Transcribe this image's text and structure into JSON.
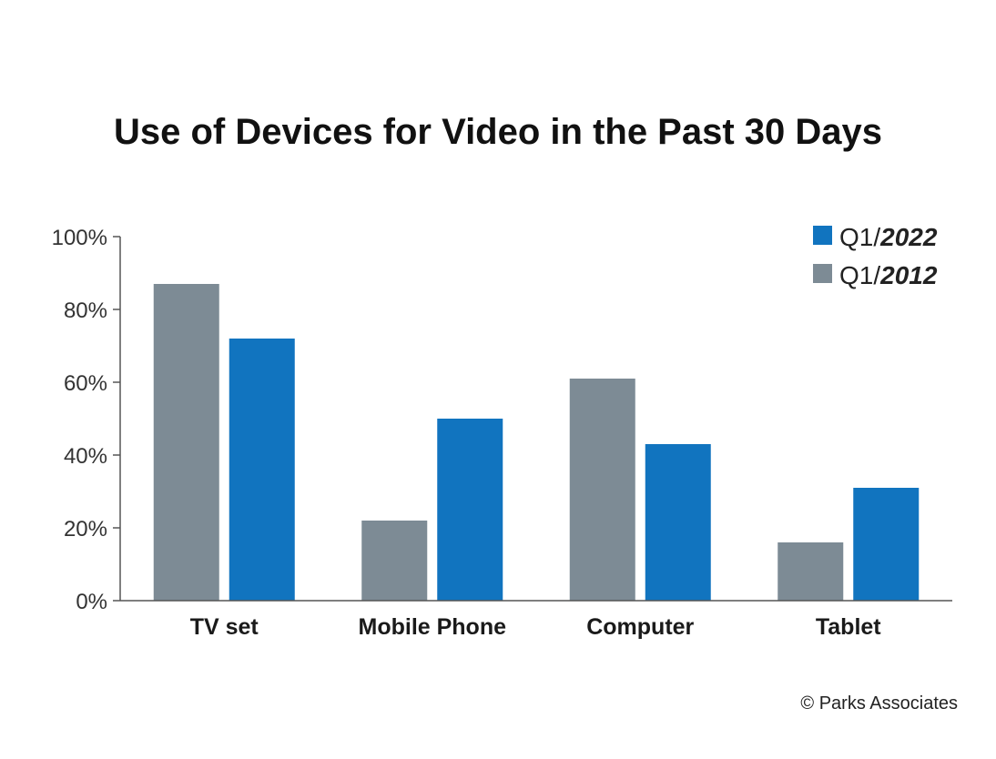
{
  "chart_data": {
    "type": "bar",
    "title": "Use of Devices for Video in the Past 30 Days",
    "categories": [
      "TV set",
      "Mobile Phone",
      "Computer",
      "Tablet"
    ],
    "series": [
      {
        "name_prefix": "Q1/",
        "name_year": "2012",
        "color": "#7d8b95",
        "values": [
          87,
          22,
          61,
          16
        ]
      },
      {
        "name_prefix": "Q1/",
        "name_year": "2022",
        "color": "#1174bf",
        "values": [
          72,
          50,
          43,
          31
        ]
      }
    ],
    "yticks": [
      "0%",
      "20%",
      "40%",
      "60%",
      "80%",
      "100%"
    ],
    "ylim": [
      0,
      100
    ],
    "xlabel": "",
    "ylabel": "",
    "legend_position": "top-right",
    "legend_order": [
      1,
      0
    ],
    "grid": false
  },
  "credit": "© Parks Associates"
}
